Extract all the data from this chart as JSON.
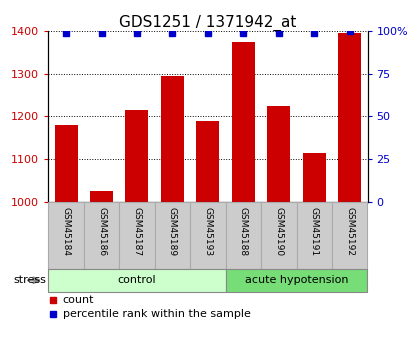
{
  "title": "GDS1251 / 1371942_at",
  "samples": [
    "GSM45184",
    "GSM45186",
    "GSM45187",
    "GSM45189",
    "GSM45193",
    "GSM45188",
    "GSM45190",
    "GSM45191",
    "GSM45192"
  ],
  "count_values": [
    1180,
    1025,
    1215,
    1295,
    1190,
    1375,
    1225,
    1115,
    1395
  ],
  "percentile_values": [
    99,
    99,
    99,
    99,
    99,
    99,
    99,
    99,
    100
  ],
  "groups": [
    {
      "label": "control",
      "start": 0,
      "end": 5,
      "color": "#ccffcc"
    },
    {
      "label": "acute hypotension",
      "start": 5,
      "end": 9,
      "color": "#77dd77"
    }
  ],
  "stress_label": "stress",
  "ylim_left": [
    1000,
    1400
  ],
  "ylim_right": [
    0,
    100
  ],
  "yticks_left": [
    1000,
    1100,
    1200,
    1300,
    1400
  ],
  "yticks_right": [
    0,
    25,
    50,
    75,
    100
  ],
  "bar_color": "#cc0000",
  "dot_color": "#0000cc",
  "legend_count_label": "count",
  "legend_pct_label": "percentile rank within the sample",
  "title_fontsize": 11,
  "axis_color_left": "#cc0000",
  "axis_color_right": "#0000cc",
  "sample_box_color": "#cccccc",
  "sample_box_edge": "#aaaaaa"
}
